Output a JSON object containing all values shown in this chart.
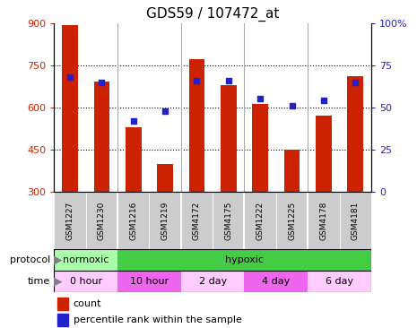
{
  "title": "GDS59 / 107472_at",
  "samples": [
    "GSM1227",
    "GSM1230",
    "GSM1216",
    "GSM1219",
    "GSM4172",
    "GSM4175",
    "GSM1222",
    "GSM1225",
    "GSM4178",
    "GSM4181"
  ],
  "counts": [
    893,
    693,
    530,
    400,
    770,
    680,
    613,
    450,
    570,
    710
  ],
  "percentiles": [
    68,
    65,
    42,
    48,
    66,
    66,
    55,
    51,
    54,
    65
  ],
  "ymin": 300,
  "ymax": 900,
  "yticks": [
    300,
    450,
    600,
    750,
    900
  ],
  "right_yticks": [
    0,
    25,
    50,
    75,
    100
  ],
  "bar_color": "#cc2200",
  "dot_color": "#2222cc",
  "bar_width": 0.5,
  "norm_color": "#aaffaa",
  "hyp_color": "#44cc44",
  "time_colors": [
    "#ffccff",
    "#ff88ff",
    "#ffccff",
    "#ff88ff",
    "#ffccff"
  ],
  "legend_count_label": "count",
  "legend_pct_label": "percentile rank within the sample",
  "title_fontsize": 11
}
